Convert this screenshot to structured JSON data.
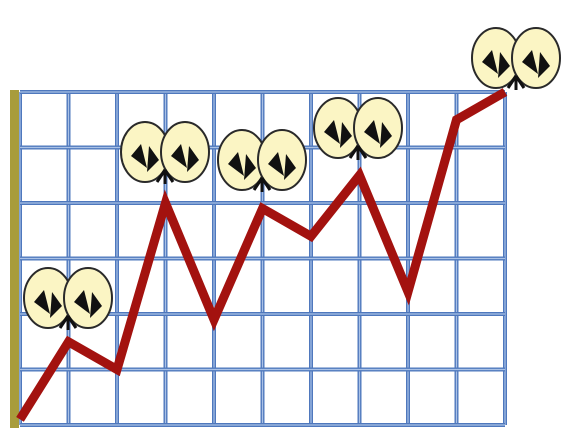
{
  "chart_data": {
    "type": "line",
    "categories": [
      null,
      null,
      null,
      null,
      null,
      null,
      null,
      null,
      null,
      null,
      null
    ],
    "values": [
      0.1,
      1.5,
      1.0,
      4.0,
      1.9,
      3.9,
      3.4,
      4.5,
      2.4,
      5.5,
      6.0
    ],
    "color": "#a3120f",
    "ylim": [
      0,
      6
    ]
  }
}
